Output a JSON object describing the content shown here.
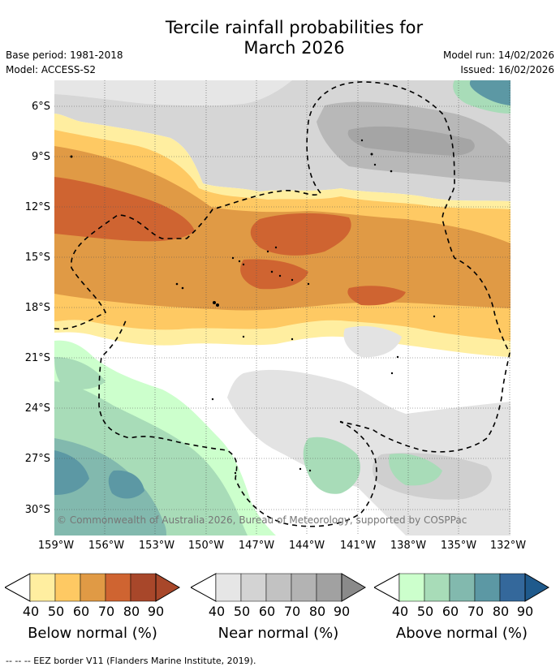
{
  "title_line1": "Tercile rainfall probabilities for",
  "title_line2": "March 2026",
  "base_period": "Base period: 1981-2018",
  "model": "Model: ACCESS-S2",
  "model_run": "Model run: 14/02/2026",
  "issued": "Issued: 16/02/2026",
  "lat_labels": [
    "6°S",
    "9°S",
    "12°S",
    "15°S",
    "18°S",
    "21°S",
    "24°S",
    "27°S",
    "30°S"
  ],
  "lon_labels": [
    "159°W",
    "156°W",
    "153°W",
    "150°W",
    "147°W",
    "144°W",
    "141°W",
    "138°W",
    "135°W",
    "132°W"
  ],
  "copyright": "© Commonwealth of Australia 2026, Bureau of Meteorology, supported by COSPPac",
  "colorbars": [
    {
      "title": "Below normal (%)",
      "ticks": [
        "40",
        "50",
        "60",
        "70",
        "80",
        "90"
      ],
      "colors": [
        "#ffeea0",
        "#fec963",
        "#e09a45",
        "#cf6431",
        "#a8472a",
        "#a8472a"
      ]
    },
    {
      "title": "Near normal (%)",
      "ticks": [
        "40",
        "50",
        "60",
        "70",
        "80",
        "90"
      ],
      "colors": [
        "#e6e6e6",
        "#d3d3d3",
        "#c2c2c2",
        "#b3b3b3",
        "#a1a1a1",
        "#8a8a8a"
      ]
    },
    {
      "title": "Above normal (%)",
      "ticks": [
        "40",
        "50",
        "60",
        "70",
        "80",
        "90"
      ],
      "colors": [
        "#ccffcc",
        "#a8dcb8",
        "#82b9ae",
        "#5c98a4",
        "#34689b",
        "#1f5a8c"
      ]
    }
  ],
  "footer": "--  --  -- EEZ border V11 (Flanders Marine Institute, 2019)."
}
